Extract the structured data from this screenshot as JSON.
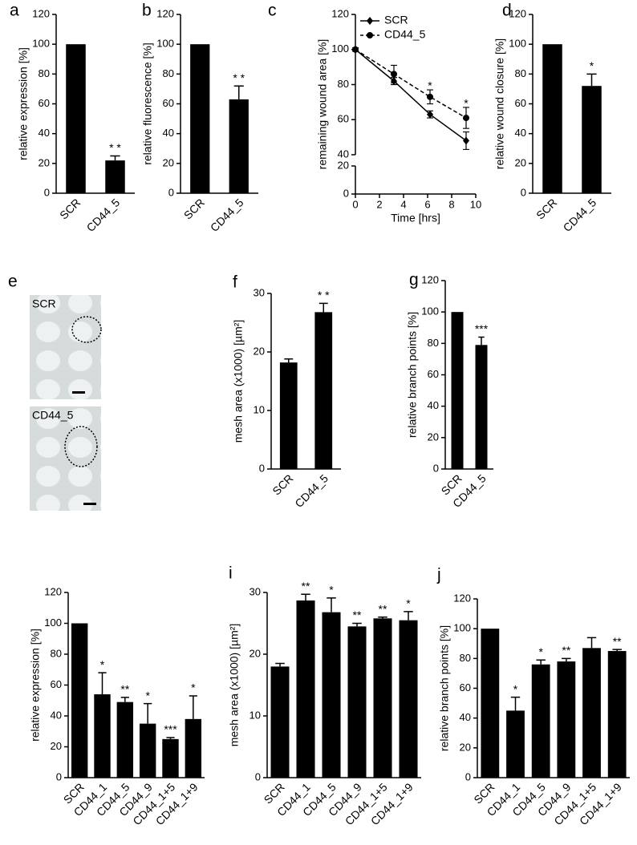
{
  "chart_data": [
    {
      "type": "bar",
      "panel": "a",
      "ylabel": "relative expression [%]",
      "categories": [
        "SCR",
        "CD44_5"
      ],
      "values": [
        100,
        22
      ],
      "errors": [
        null,
        3
      ],
      "significance": [
        null,
        "* *"
      ],
      "color": "#000000",
      "ylim": [
        0,
        120
      ],
      "yticks": [
        0,
        20,
        40,
        60,
        80,
        100,
        120
      ]
    },
    {
      "type": "bar",
      "panel": "b",
      "ylabel": "relative fluorescence [%]",
      "categories": [
        "SCR",
        "CD44_5"
      ],
      "values": [
        100,
        63
      ],
      "errors": [
        null,
        9
      ],
      "significance": [
        null,
        "* *"
      ],
      "color": "#000000",
      "ylim": [
        0,
        120
      ],
      "yticks": [
        0,
        20,
        40,
        60,
        80,
        100,
        120
      ]
    },
    {
      "type": "line",
      "panel": "c",
      "ylabel": "remaining wound area [%]",
      "xlabel": "Time [hrs]",
      "x": [
        0,
        3.2,
        6.2,
        9.2
      ],
      "series": [
        {
          "name": "SCR",
          "color": "#000000",
          "marker": "diamond",
          "dashed": false,
          "values": [
            100,
            82,
            63,
            48
          ],
          "errors": [
            1,
            2,
            2,
            5
          ]
        },
        {
          "name": "CD44_5",
          "color": "#000000",
          "marker": "circle",
          "dashed": true,
          "values": [
            100,
            86,
            73,
            61
          ],
          "errors": [
            1,
            5,
            4,
            6
          ]
        }
      ],
      "annotations": [
        {
          "x": 6.2,
          "y": 79,
          "text": "*"
        },
        {
          "x": 9.2,
          "y": 69,
          "text": "*"
        }
      ],
      "xlim": [
        0,
        10
      ],
      "xticks": [
        0,
        2,
        4,
        6,
        8,
        10
      ],
      "ylim": [
        0,
        120
      ],
      "yticks": [
        0,
        20,
        40,
        60,
        80,
        100,
        120
      ],
      "ybreak": [
        20,
        40
      ]
    },
    {
      "type": "bar",
      "panel": "d",
      "ylabel": "relative wound closure [%]",
      "categories": [
        "SCR",
        "CD44_5"
      ],
      "values": [
        100,
        72
      ],
      "errors": [
        null,
        8
      ],
      "significance": [
        null,
        "*"
      ],
      "color": "#000000",
      "ylim": [
        0,
        120
      ],
      "yticks": [
        0,
        20,
        40,
        60,
        80,
        100,
        120
      ]
    },
    {
      "type": "bar",
      "panel": "f",
      "ylabel": "mesh area (x1000) [µm²]",
      "categories": [
        "SCR",
        "CD44_5"
      ],
      "values": [
        18.2,
        26.8
      ],
      "errors": [
        0.6,
        1.5
      ],
      "significance": [
        null,
        "* *"
      ],
      "color": "#000000",
      "ylim": [
        0,
        30
      ],
      "yticks": [
        0,
        10,
        20,
        30
      ]
    },
    {
      "type": "bar",
      "panel": "g",
      "ylabel": "relative branch points [%]",
      "categories": [
        "SCR",
        "CD44_5"
      ],
      "values": [
        100,
        79
      ],
      "errors": [
        null,
        5
      ],
      "significance": [
        null,
        "***"
      ],
      "color": "#000000",
      "ylim": [
        0,
        120
      ],
      "yticks": [
        0,
        20,
        40,
        60,
        80,
        100,
        120
      ]
    },
    {
      "type": "bar",
      "ylabel": "relative expression [%]",
      "categories": [
        "SCR",
        "CD44_1",
        "CD44_5",
        "CD44_9",
        "CD44_1+5",
        "CD44_1+9"
      ],
      "values": [
        100,
        54,
        49,
        35,
        25,
        38
      ],
      "errors": [
        null,
        14,
        3,
        13,
        1,
        15
      ],
      "significance": [
        null,
        "*",
        "**",
        "*",
        "***",
        "*"
      ],
      "color": "#000000",
      "ylim": [
        0,
        120
      ],
      "yticks": [
        0,
        20,
        40,
        60,
        80,
        100,
        120
      ]
    },
    {
      "type": "bar",
      "panel": "i",
      "ylabel": "mesh area (x1000) [µm²]",
      "categories": [
        "SCR",
        "CD44_1",
        "CD44_5",
        "CD44_9",
        "CD44_1+5",
        "CD44_1+9"
      ],
      "values": [
        18,
        28.7,
        26.8,
        24.5,
        25.8,
        25.5
      ],
      "errors": [
        0.5,
        1,
        2.3,
        0.5,
        0.2,
        1.4
      ],
      "significance": [
        null,
        "**",
        "*",
        "**",
        "**",
        "*"
      ],
      "color": "#000000",
      "ylim": [
        0,
        30
      ],
      "yticks": [
        0,
        10,
        20,
        30
      ]
    },
    {
      "type": "bar",
      "panel": "j",
      "ylabel": "relative branch points [%]",
      "categories": [
        "SCR",
        "CD44_1",
        "CD44_5",
        "CD44_9",
        "CD44_1+5",
        "CD44_1+9"
      ],
      "values": [
        100,
        45,
        76,
        78,
        87,
        85
      ],
      "errors": [
        null,
        9,
        3,
        2,
        7,
        1
      ],
      "significance": [
        null,
        "*",
        "*",
        "**",
        null,
        "**"
      ],
      "color": "#000000",
      "ylim": [
        0,
        120
      ],
      "yticks": [
        0,
        20,
        40,
        60,
        80,
        100,
        120
      ]
    }
  ],
  "images": {
    "panel": "e",
    "items": [
      "SCR",
      "CD44_5"
    ]
  }
}
